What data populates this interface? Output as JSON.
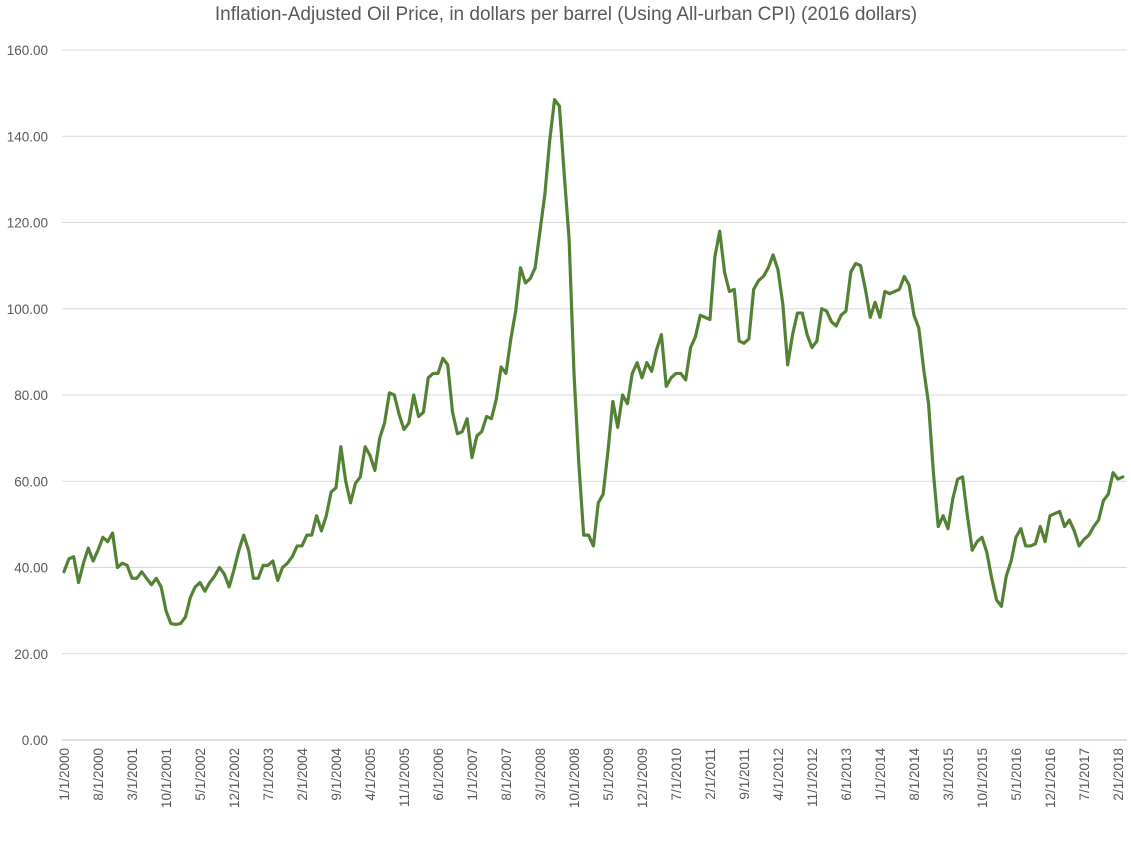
{
  "chart_data": {
    "type": "line",
    "title": "Inflation-Adjusted Oil Price, in dollars per barrel (Using All-urban CPI) (2016 dollars)",
    "xlabel": "",
    "ylabel": "",
    "ylim": [
      0,
      160
    ],
    "y_ticks": [
      "0.00",
      "20.00",
      "40.00",
      "60.00",
      "80.00",
      "100.00",
      "120.00",
      "140.00",
      "160.00"
    ],
    "y_tick_values": [
      0,
      20,
      40,
      60,
      80,
      100,
      120,
      140,
      160
    ],
    "grid": true,
    "legend": "none",
    "x_start": "2000-01",
    "x_frequency": "monthly",
    "x_tick_every_months": 7,
    "x_tick_labels": [
      "1/1/2000",
      "8/1/2000",
      "3/1/2001",
      "10/1/2001",
      "5/1/2002",
      "12/1/2002",
      "7/1/2003",
      "2/1/2004",
      "9/1/2004",
      "4/1/2005",
      "11/1/2005",
      "6/1/2006",
      "1/1/2007",
      "8/1/2007",
      "3/1/2008",
      "10/1/2008",
      "5/1/2009",
      "12/1/2009",
      "7/1/2010",
      "2/1/2011",
      "9/1/2011",
      "4/1/2012",
      "11/1/2012",
      "6/1/2013",
      "1/1/2014",
      "8/1/2014",
      "3/1/2015",
      "10/1/2015",
      "5/1/2016",
      "12/1/2016",
      "7/1/2017",
      "2/1/2018"
    ],
    "series": [
      {
        "name": "Inflation-Adjusted Oil Price",
        "color": "#548235",
        "values": [
          39,
          42,
          42.5,
          36.5,
          41,
          44.5,
          41.5,
          44,
          47,
          46,
          48,
          40,
          41,
          40.5,
          37.5,
          37.5,
          39,
          37.5,
          36,
          37.5,
          35.5,
          30,
          27,
          26.8,
          27,
          28.5,
          33,
          35.5,
          36.5,
          34.5,
          36.5,
          38,
          40,
          38.5,
          35.5,
          39.5,
          44,
          47.5,
          44,
          37.5,
          37.5,
          40.5,
          40.5,
          41.5,
          37,
          40,
          41,
          42.5,
          45,
          45,
          47.5,
          47.5,
          52,
          48.5,
          52,
          57.5,
          58.5,
          68,
          60,
          55,
          59.5,
          61,
          68,
          66,
          62.5,
          70,
          73.5,
          80.5,
          80,
          75.5,
          72,
          73.5,
          80,
          75,
          76,
          84,
          85,
          85,
          88.5,
          87,
          76,
          71,
          71.5,
          74.5,
          65.5,
          70.5,
          71.5,
          75,
          74.5,
          79,
          86.5,
          85,
          93,
          99.5,
          109.5,
          106,
          107,
          109.5,
          118,
          126.5,
          139,
          148.5,
          147,
          131,
          116,
          85,
          64,
          47.5,
          47.5,
          45,
          55,
          57,
          67,
          78.5,
          72.5,
          80,
          78,
          85,
          87.5,
          84,
          87.5,
          85.5,
          90.5,
          94,
          82,
          84,
          85,
          85,
          83.5,
          91,
          93.5,
          98.5,
          98,
          97.5,
          112,
          118,
          108.5,
          104,
          104.5,
          92.5,
          92,
          93,
          104.5,
          106.5,
          107.5,
          109.5,
          112.5,
          109,
          101,
          87,
          94,
          99,
          99,
          94,
          91,
          92.5,
          100,
          99.5,
          97,
          96,
          98.5,
          99.5,
          108.5,
          110.5,
          110,
          104.5,
          98,
          101.5,
          98,
          104,
          103.5,
          104,
          104.5,
          107.5,
          105.5,
          98.5,
          95.5,
          86,
          78,
          62,
          49.5,
          52,
          49,
          56,
          60.5,
          61,
          52,
          44,
          46,
          47,
          43.5,
          37.5,
          32.5,
          31,
          38,
          41.5,
          47,
          49,
          45,
          45,
          45.5,
          49.5,
          46,
          52,
          52.5,
          53,
          49.5,
          51,
          48.5,
          45,
          46.5,
          47.5,
          49.5,
          51,
          55.5,
          57,
          62,
          60.5,
          61
        ]
      }
    ]
  }
}
